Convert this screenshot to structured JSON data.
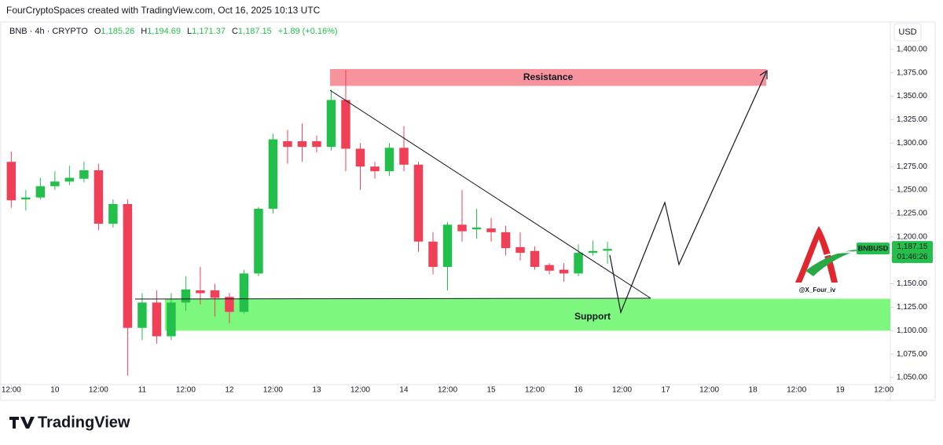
{
  "header": "FourCryptoSpaces created with TradingView.com, Oct 16, 2025 10:13 UTC",
  "legend": {
    "symbol": "BNB · 4h · CRYPTO",
    "items": [
      {
        "key": "O",
        "value": "1,185.26"
      },
      {
        "key": "H",
        "value": "1,194.69"
      },
      {
        "key": "L",
        "value": "1,171.37"
      },
      {
        "key": "C",
        "value": "1,187.15"
      }
    ],
    "change": "+1.89 (+0.16%)"
  },
  "price_tag": {
    "symbol": "BNBUSD",
    "price": "1,187.15",
    "countdown": "01:46:26"
  },
  "watermark": "@X_Four_iv",
  "brand": "TradingView",
  "chart_data": {
    "type": "candlestick",
    "y_axis_label": "USD",
    "up_color": "#22c04a",
    "down_color": "#ef4057",
    "grid": false,
    "x": [
      -12,
      -8,
      -4,
      0,
      4,
      8,
      12,
      16,
      20,
      24,
      28,
      32,
      36,
      40,
      44,
      48,
      52,
      56,
      60,
      64,
      68,
      72,
      76,
      80,
      84,
      88,
      92,
      96,
      100,
      104,
      108,
      112,
      116,
      120,
      124,
      128,
      132,
      136,
      140,
      144,
      148,
      152
    ],
    "open": [
      1280,
      1240,
      1242,
      1254,
      1259,
      1262,
      1271,
      1214,
      1235,
      1103,
      1130,
      1094,
      1130,
      1143,
      1143,
      1136,
      1120,
      1161,
      1230,
      1302,
      1302,
      1302,
      1296,
      1346,
      1294,
      1275,
      1270,
      1295,
      1277,
      1195,
      1168,
      1213,
      1208,
      1209,
      1205,
      1189,
      1185,
      1170,
      1165,
      1161,
      1183,
      1185.26
    ],
    "high": [
      1291,
      1250,
      1263,
      1270,
      1276,
      1280,
      1278,
      1240,
      1240,
      1140,
      1143,
      1140,
      1158,
      1168,
      1150,
      1140,
      1165,
      1232,
      1310,
      1314,
      1321,
      1308,
      1357,
      1378,
      1300,
      1280,
      1300,
      1318,
      1280,
      1205,
      1216,
      1250,
      1230,
      1220,
      1212,
      1205,
      1190,
      1172,
      1172,
      1192,
      1196,
      1194.69
    ],
    "low": [
      1231,
      1228,
      1240,
      1250,
      1255,
      1258,
      1207,
      1210,
      1052,
      1090,
      1086,
      1090,
      1121,
      1128,
      1115,
      1108,
      1118,
      1158,
      1225,
      1278,
      1280,
      1290,
      1292,
      1270,
      1250,
      1262,
      1265,
      1270,
      1184,
      1160,
      1143,
      1195,
      1198,
      1195,
      1180,
      1175,
      1165,
      1160,
      1152,
      1158,
      1180,
      1171.37
    ],
    "close": [
      1239,
      1242,
      1254,
      1259,
      1263,
      1271,
      1214,
      1235,
      1103,
      1130,
      1094,
      1130,
      1144,
      1140,
      1135,
      1120,
      1161,
      1230,
      1304,
      1296,
      1296,
      1296,
      1346,
      1294,
      1275,
      1270,
      1295,
      1277,
      1195,
      1168,
      1213,
      1206,
      1210,
      1205,
      1188,
      1183,
      1168,
      1164,
      1161,
      1183,
      1185,
      1187.15
    ],
    "xlim": [
      -15.1,
      229.8
    ],
    "xticks": [
      {
        "value": -12,
        "label": "12:00"
      },
      {
        "value": 0,
        "label": "10"
      },
      {
        "value": 12,
        "label": "12:00"
      },
      {
        "value": 24,
        "label": "11"
      },
      {
        "value": 36,
        "label": "12:00"
      },
      {
        "value": 48,
        "label": "12"
      },
      {
        "value": 60,
        "label": "12:00"
      },
      {
        "value": 72,
        "label": "13"
      },
      {
        "value": 84,
        "label": "12:00"
      },
      {
        "value": 96,
        "label": "14"
      },
      {
        "value": 108,
        "label": "12:00"
      },
      {
        "value": 120,
        "label": "15"
      },
      {
        "value": 132,
        "label": "12:00"
      },
      {
        "value": 144,
        "label": "16"
      },
      {
        "value": 156,
        "label": "12:00"
      },
      {
        "value": 168,
        "label": "17"
      },
      {
        "value": 180,
        "label": "12:00"
      },
      {
        "value": 192,
        "label": "18"
      },
      {
        "value": 204,
        "label": "12:00"
      },
      {
        "value": 216,
        "label": "19"
      },
      {
        "value": 228,
        "label": "12:00"
      }
    ],
    "ylim": [
      1042.5,
      1427.5
    ],
    "yticks": [
      {
        "value": 1050,
        "label": "1,050.00"
      },
      {
        "value": 1075,
        "label": "1,075.00"
      },
      {
        "value": 1100,
        "label": "1,100.00"
      },
      {
        "value": 1125,
        "label": "1,125.00"
      },
      {
        "value": 1150,
        "label": "1,150.00"
      },
      {
        "value": 1175,
        "label": "1,175.00"
      },
      {
        "value": 1200,
        "label": "1,200.00"
      },
      {
        "value": 1225,
        "label": "1,225.00"
      },
      {
        "value": 1250,
        "label": "1,250.00"
      },
      {
        "value": 1275,
        "label": "1,275.00"
      },
      {
        "value": 1300,
        "label": "1,300.00"
      },
      {
        "value": 1325,
        "label": "1,325.00"
      },
      {
        "value": 1350,
        "label": "1,350.00"
      },
      {
        "value": 1375,
        "label": "1,375.00"
      },
      {
        "value": 1400,
        "label": "1,400.00"
      }
    ],
    "zones": [
      {
        "label": "Resistance",
        "low": 1361,
        "high": 1379,
        "color": "#f7939c",
        "text_color": "#ec4a5c"
      },
      {
        "label": "Support",
        "low": 1100,
        "high": 1134,
        "color": "#7ef77e",
        "text_color": "#111111"
      }
    ]
  }
}
